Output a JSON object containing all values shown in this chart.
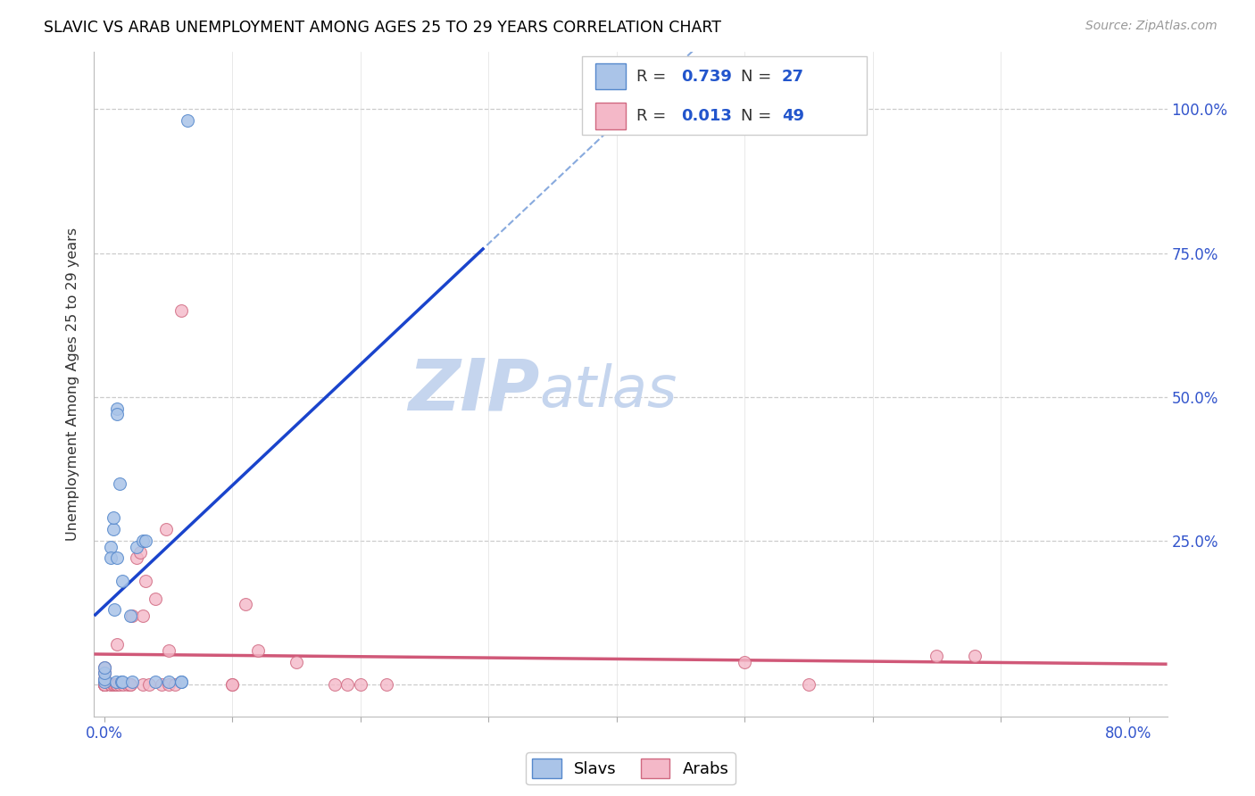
{
  "title": "SLAVIC VS ARAB UNEMPLOYMENT AMONG AGES 25 TO 29 YEARS CORRELATION CHART",
  "source": "Source: ZipAtlas.com",
  "ylabel": "Unemployment Among Ages 25 to 29 years",
  "xlim": [
    -0.008,
    0.83
  ],
  "ylim": [
    -0.055,
    1.1
  ],
  "slavs_R": "0.739",
  "slavs_N": "27",
  "arabs_R": "0.013",
  "arabs_N": "49",
  "slavs_color": "#aac4e8",
  "slavs_edge_color": "#5588cc",
  "arabs_color": "#f4b8c8",
  "arabs_edge_color": "#d06880",
  "blue_line_color": "#1a44cc",
  "pink_line_color": "#d05878",
  "blue_dash_color": "#88aade",
  "grid_color": "#cccccc",
  "tick_label_color": "#3355cc",
  "slavs_x": [
    0.0,
    0.0,
    0.0,
    0.0,
    0.005,
    0.005,
    0.007,
    0.007,
    0.008,
    0.009,
    0.01,
    0.01,
    0.01,
    0.012,
    0.013,
    0.014,
    0.014,
    0.02,
    0.022,
    0.025,
    0.03,
    0.032,
    0.04,
    0.05,
    0.06,
    0.06,
    0.065
  ],
  "slavs_y": [
    0.005,
    0.01,
    0.02,
    0.03,
    0.24,
    0.22,
    0.27,
    0.29,
    0.13,
    0.005,
    0.22,
    0.48,
    0.47,
    0.35,
    0.005,
    0.18,
    0.005,
    0.12,
    0.005,
    0.24,
    0.25,
    0.25,
    0.005,
    0.005,
    0.005,
    0.005,
    0.98
  ],
  "arabs_x": [
    0.0,
    0.0,
    0.0,
    0.0,
    0.0,
    0.0,
    0.0,
    0.0,
    0.0,
    0.0,
    0.005,
    0.005,
    0.007,
    0.008,
    0.009,
    0.01,
    0.01,
    0.012,
    0.015,
    0.018,
    0.02,
    0.02,
    0.022,
    0.025,
    0.028,
    0.03,
    0.03,
    0.032,
    0.035,
    0.04,
    0.045,
    0.048,
    0.05,
    0.05,
    0.055,
    0.06,
    0.1,
    0.1,
    0.11,
    0.12,
    0.15,
    0.18,
    0.19,
    0.2,
    0.22,
    0.5,
    0.55,
    0.65,
    0.68
  ],
  "arabs_y": [
    0.0,
    0.0,
    0.0,
    0.0,
    0.0,
    0.0,
    0.0,
    0.01,
    0.02,
    0.03,
    0.0,
    0.0,
    0.0,
    0.0,
    0.0,
    0.0,
    0.07,
    0.0,
    0.0,
    0.0,
    0.0,
    0.0,
    0.12,
    0.22,
    0.23,
    0.0,
    0.12,
    0.18,
    0.0,
    0.15,
    0.0,
    0.27,
    0.0,
    0.06,
    0.0,
    0.65,
    0.0,
    0.0,
    0.14,
    0.06,
    0.04,
    0.0,
    0.0,
    0.0,
    0.0,
    0.04,
    0.0,
    0.05,
    0.05
  ],
  "marker_size": 100,
  "y_ticks": [
    0.0,
    0.25,
    0.5,
    0.75,
    1.0
  ],
  "y_tick_labels": [
    "",
    "25.0%",
    "50.0%",
    "75.0%",
    "100.0%"
  ],
  "x_tick_show": [
    0.0,
    0.8
  ],
  "x_tick_labels": [
    "0.0%",
    "80.0%"
  ]
}
